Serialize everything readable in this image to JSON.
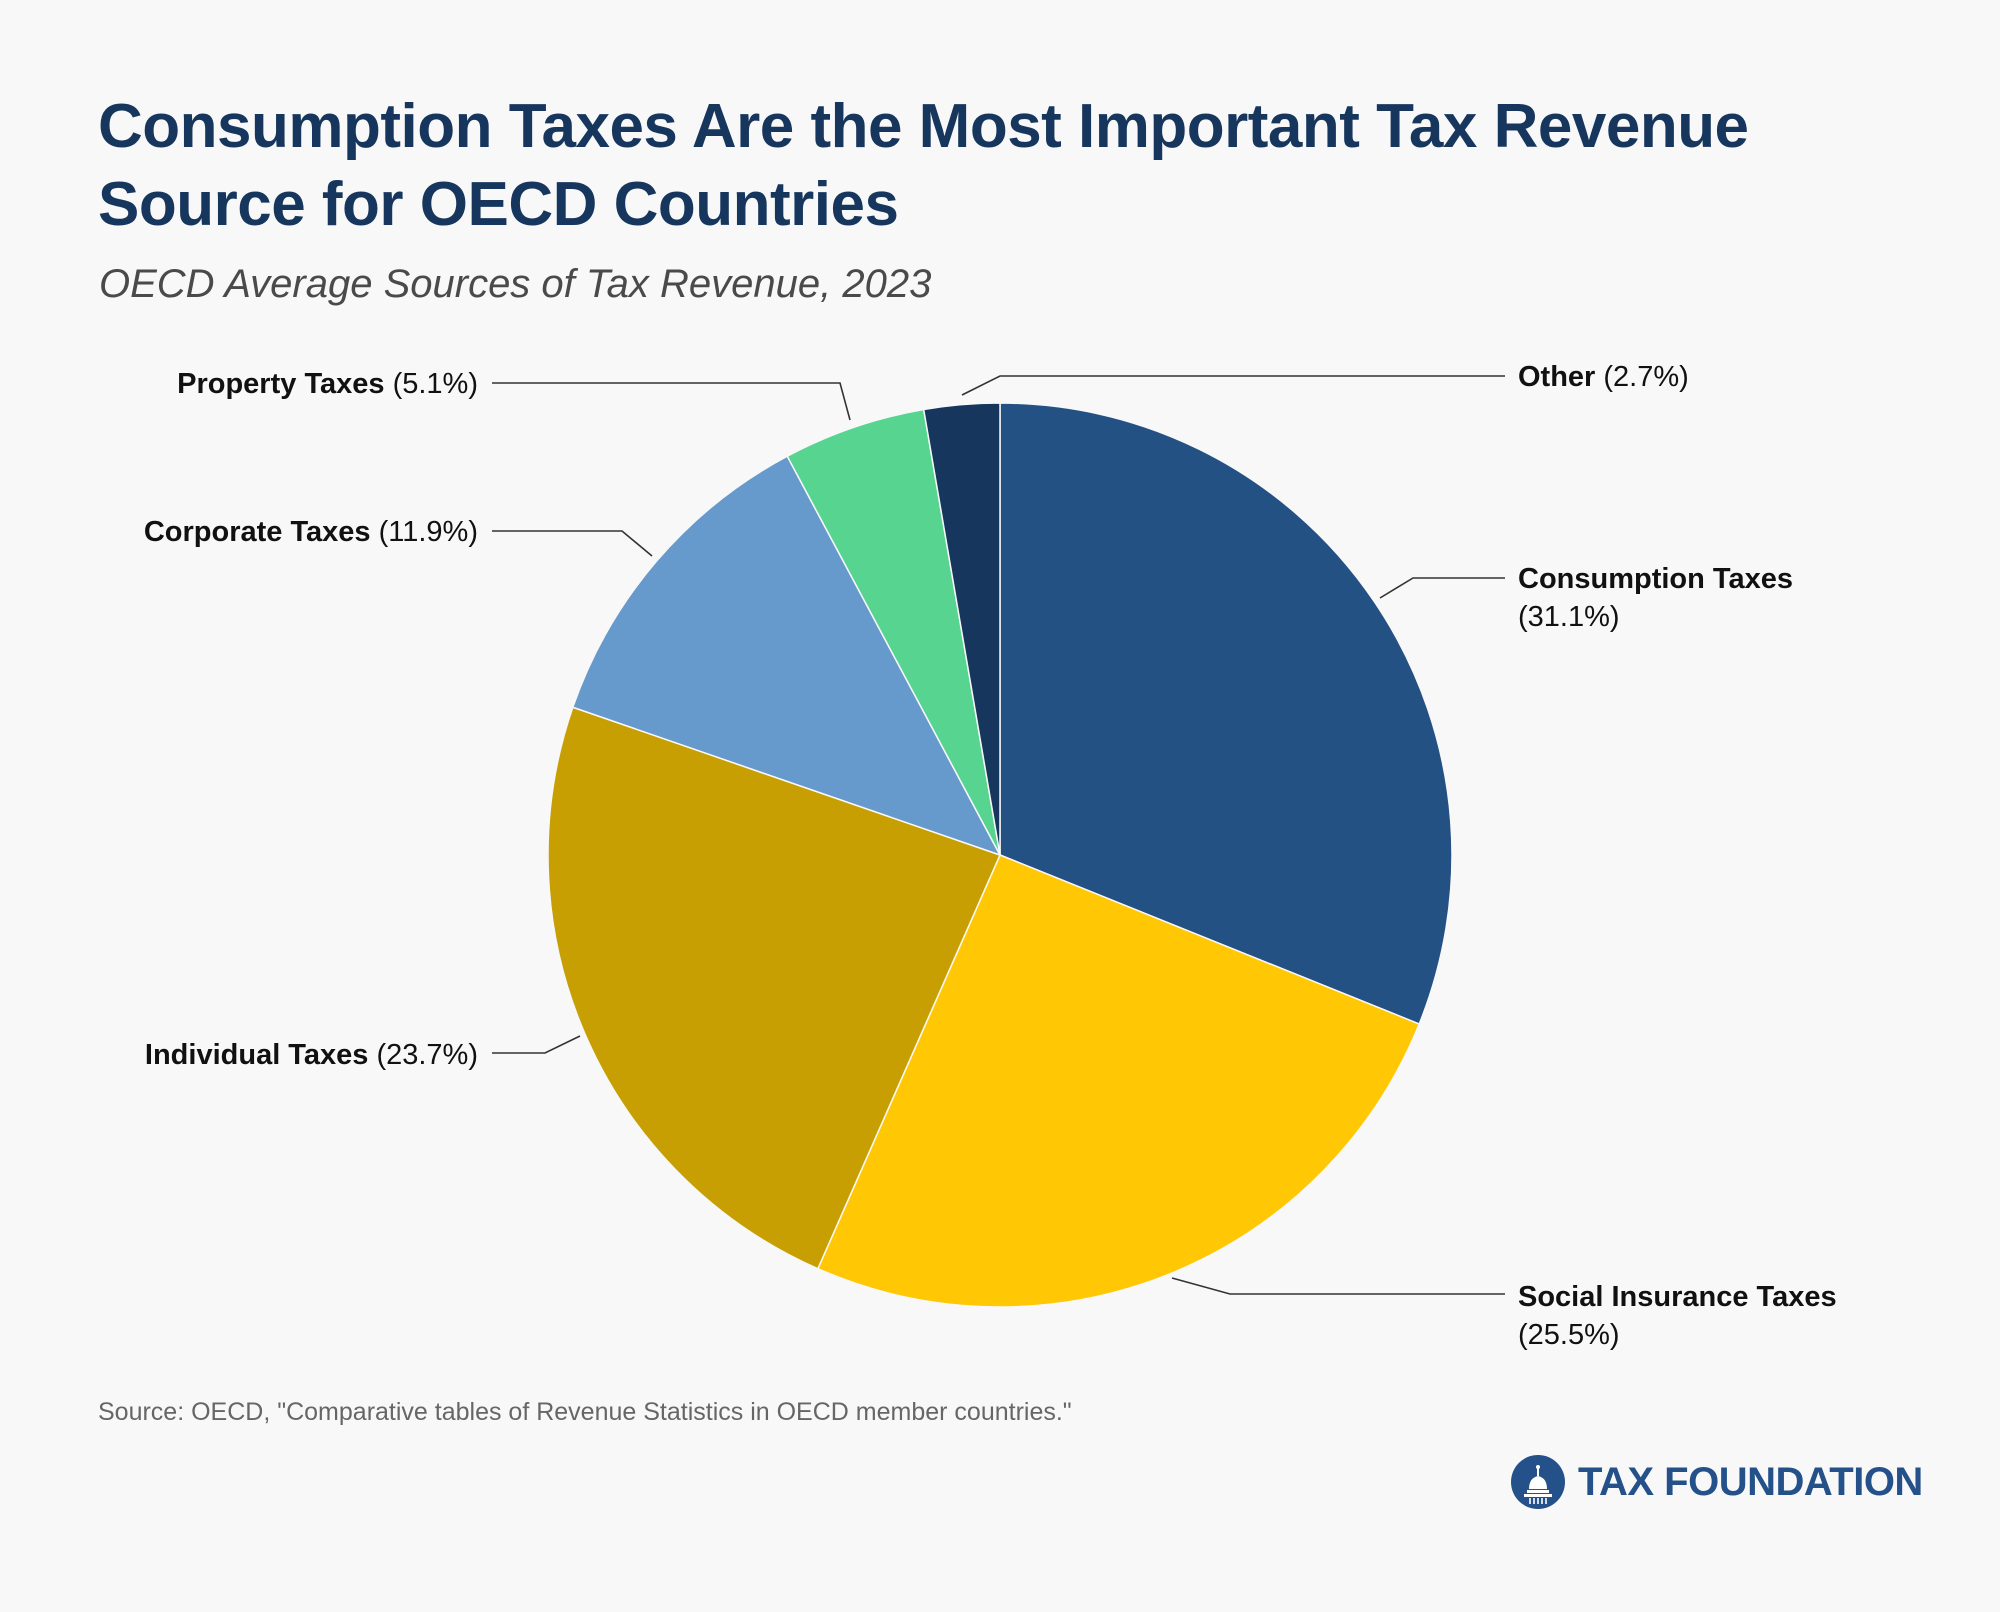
{
  "title": "Consumption Taxes Are the Most Important Tax Revenue Source for OECD Countries",
  "subtitle": "OECD Average Sources of Tax Revenue, 2023",
  "source": "Source: OECD, \"Comparative tables of Revenue Statistics in OECD member countries.\"",
  "logo": {
    "text": "TAX FOUNDATION",
    "icon": "capitol-dome-icon",
    "color": "#245189"
  },
  "chart_data": {
    "type": "pie",
    "start_angle_deg": 0,
    "direction": "clockwise",
    "slices": [
      {
        "name": "Consumption Taxes",
        "value": 31.1,
        "value_label": "(31.1%)",
        "color": "#245183"
      },
      {
        "name": "Social Insurance Taxes",
        "value": 25.5,
        "value_label": "(25.5%)",
        "color": "#ffc704"
      },
      {
        "name": "Individual Taxes",
        "value": 23.7,
        "value_label": "(23.7%)",
        "color": "#c89f02"
      },
      {
        "name": "Corporate Taxes",
        "value": 11.9,
        "value_label": "(11.9%)",
        "color": "#6699cc"
      },
      {
        "name": "Property Taxes",
        "value": 5.1,
        "value_label": "(5.1%)",
        "color": "#56d490"
      },
      {
        "name": "Other",
        "value": 2.7,
        "value_label": "(2.7%)",
        "color": "#17365d"
      }
    ]
  }
}
